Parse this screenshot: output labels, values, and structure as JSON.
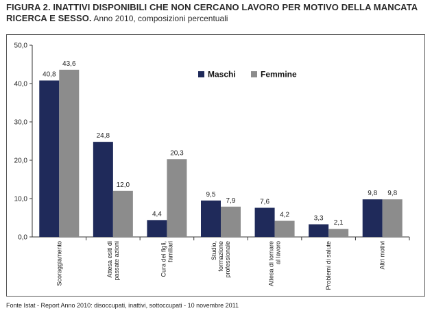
{
  "title": {
    "bold": "FIGURA 2. INATTIVI DISPONIBILI CHE NON CERCANO LAVORO PER MOTIVO DELLA MANCATA RICERCA E SESSO.",
    "rest": " Anno 2010, composizioni percentuali"
  },
  "source": "Fonte Istat - Report  Anno 2010: disoccupati, inattivi, sottoccupati - 10 novembre 2011",
  "colors": {
    "maschi": "#1f2a5a",
    "femmine": "#8c8c8c"
  },
  "chart_data": {
    "type": "bar",
    "categories": [
      [
        "Scoraggiamento"
      ],
      [
        "Attesa esiti di",
        "passate azioni"
      ],
      [
        "Cura dei figli,",
        "familiari"
      ],
      [
        "Studio,",
        "formazione",
        "professionale"
      ],
      [
        "Attesa di tornare",
        "al lavoro"
      ],
      [
        "Problemi di salute"
      ],
      [
        "Altri motivi"
      ]
    ],
    "series": [
      {
        "name": "Maschi",
        "values": [
          40.8,
          24.8,
          4.4,
          9.5,
          7.6,
          3.3,
          9.8
        ],
        "labels": [
          "40,8",
          "24,8",
          "4,4",
          "9,5",
          "7,6",
          "3,3",
          "9,8"
        ]
      },
      {
        "name": "Femmine",
        "values": [
          43.6,
          12.0,
          20.3,
          7.9,
          4.2,
          2.1,
          9.8
        ],
        "labels": [
          "43,6",
          "12,0",
          "20,3",
          "7,9",
          "4,2",
          "2,1",
          "9,8"
        ]
      }
    ],
    "yticks": [
      "0,0",
      "10,0",
      "20,0",
      "30,0",
      "40,0",
      "50,0"
    ],
    "ylim": [
      0,
      50
    ],
    "legend_position": "top-right"
  }
}
